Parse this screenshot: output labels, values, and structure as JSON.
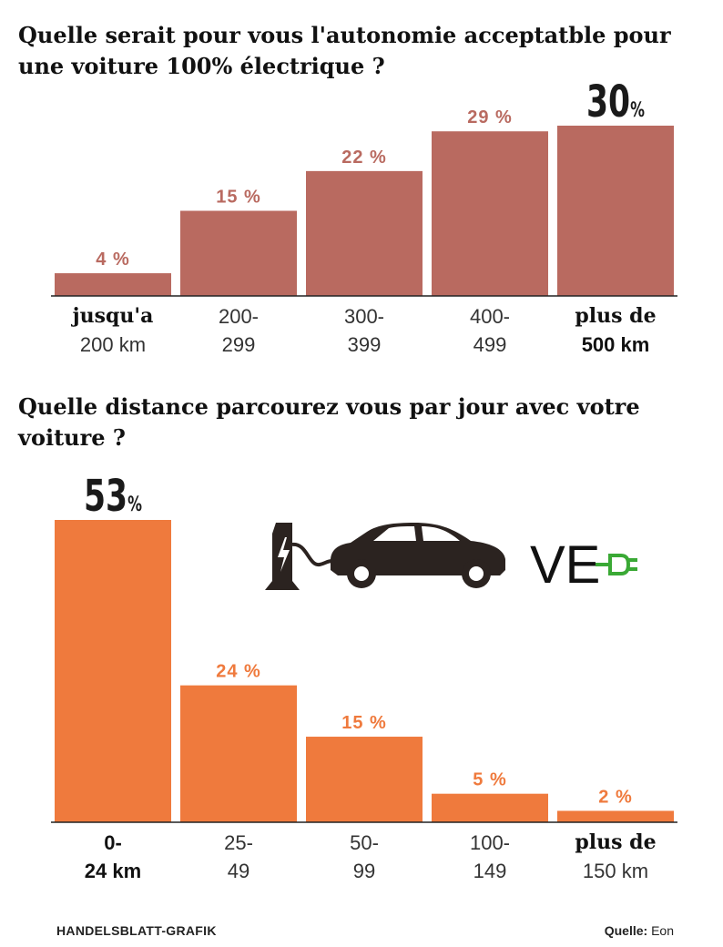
{
  "titles": {
    "chart1": "Quelle serait pour vous l'autonomie acceptatble pour\nune voiture 100% électrique ?",
    "chart2": "Quelle distance parcourez vous par jour avec votre\nvoiture ?"
  },
  "colors": {
    "chart1_bar": "#b96a60",
    "chart2_bar": "#ef7a3d",
    "highlight_text": "#1a1a1a",
    "label_text": "#555555",
    "logo_green": "#3aa935",
    "illustration": "#2b2320"
  },
  "icons": [
    "charging-station-icon",
    "plug-cable-icon",
    "electric-car-icon",
    "ve-logo"
  ],
  "logo": {
    "text": "VE"
  },
  "chart_data": [
    {
      "type": "bar",
      "title": "Quelle serait pour vous l'autonomie acceptatble pour une voiture 100% électrique ?",
      "categories": [
        {
          "line1": "jusqu'a",
          "line2": "200 km"
        },
        {
          "line1": "200-",
          "line2": "299"
        },
        {
          "line1": "300-",
          "line2": "399"
        },
        {
          "line1": "400-",
          "line2": "499"
        },
        {
          "line1": "plus de",
          "line2": "500 km"
        }
      ],
      "values": [
        4,
        15,
        22,
        29,
        30
      ],
      "value_labels": [
        "4 %",
        "15 %",
        "22 %",
        "29 %",
        "30"
      ],
      "highlight_index": 4,
      "highlight_suffix": "%",
      "ylim": [
        0,
        30
      ],
      "grid": false,
      "legend": "none"
    },
    {
      "type": "bar",
      "title": "Quelle distance parcourez vous par jour avec votre voiture ?",
      "categories": [
        {
          "line1": "0-",
          "line2": "24 km"
        },
        {
          "line1": "25-",
          "line2": "49"
        },
        {
          "line1": "50-",
          "line2": "99"
        },
        {
          "line1": "100-",
          "line2": "149"
        },
        {
          "line1": "plus de",
          "line2": "150 km"
        }
      ],
      "values": [
        53,
        24,
        15,
        5,
        2
      ],
      "value_labels": [
        "53",
        "24 %",
        "15 %",
        "5 %",
        "2 %"
      ],
      "highlight_index": 0,
      "highlight_suffix": "%",
      "ylim": [
        0,
        53
      ],
      "grid": false,
      "legend": "none"
    }
  ],
  "footer": {
    "left": "HANDELSBLATT-GRAFIK",
    "source_label": "Quelle:",
    "source_value": "Eon"
  }
}
